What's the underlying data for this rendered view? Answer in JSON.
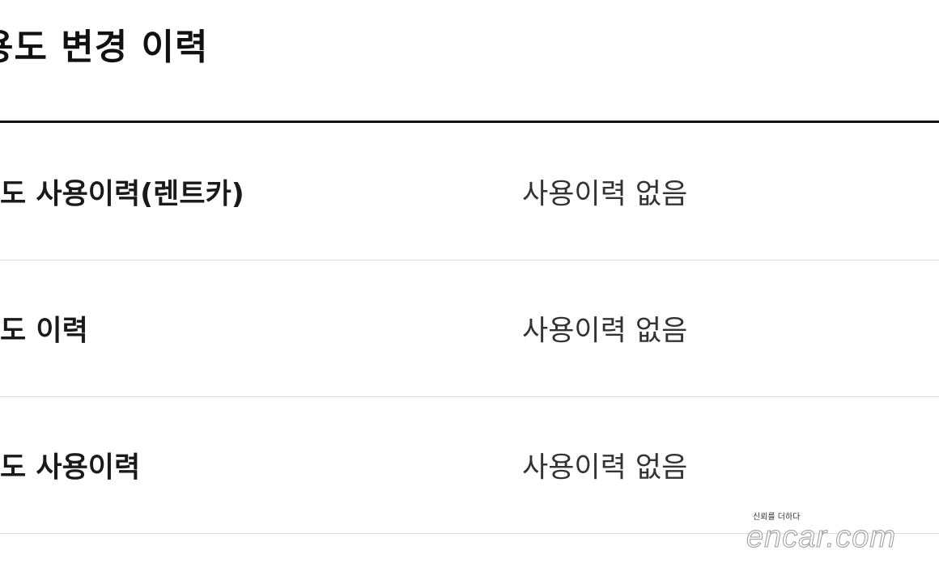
{
  "section": {
    "title": "용도 변경 이력"
  },
  "rows": [
    {
      "label": "도 사용이력(렌트카)",
      "value": "사용이력 없음"
    },
    {
      "label": "도 이력",
      "value": "사용이력 없음"
    },
    {
      "label": "도 사용이력",
      "value": "사용이력 없음"
    }
  ],
  "watermark": {
    "tagline": "신뢰를 더하다",
    "logo": "encar.com"
  }
}
